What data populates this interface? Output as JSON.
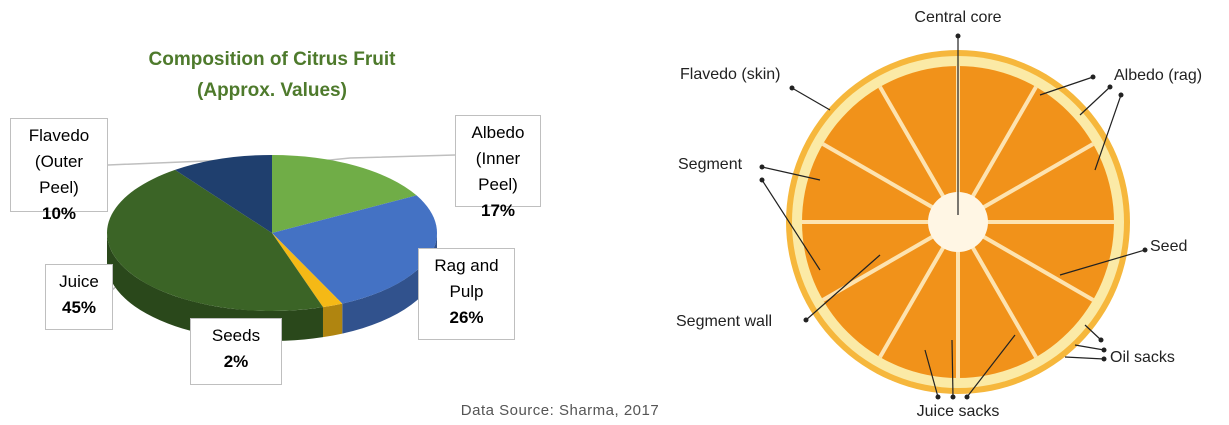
{
  "chart_data": {
    "type": "pie",
    "title": "Composition of Citrus Fruit (Approx. Values)",
    "categories": [
      "Albedo (Inner Peel)",
      "Rag and Pulp",
      "Seeds",
      "Juice",
      "Flavedo (Outer Peel)"
    ],
    "values": [
      17,
      26,
      2,
      45,
      10
    ],
    "value_labels": [
      "17%",
      "26%",
      "2%",
      "45%",
      "10%"
    ],
    "colors": [
      "#70ad47",
      "#4472c4",
      "#f5b916",
      "#3b6426",
      "#1f3f6e"
    ],
    "source": "Data Source: Sharma, 2017"
  },
  "diagram": {
    "labels": [
      "Central core",
      "Flavedo (skin)",
      "Albedo (rag)",
      "Segment",
      "Seed",
      "Segment wall",
      "Oil sacks",
      "Juice sacks"
    ]
  }
}
